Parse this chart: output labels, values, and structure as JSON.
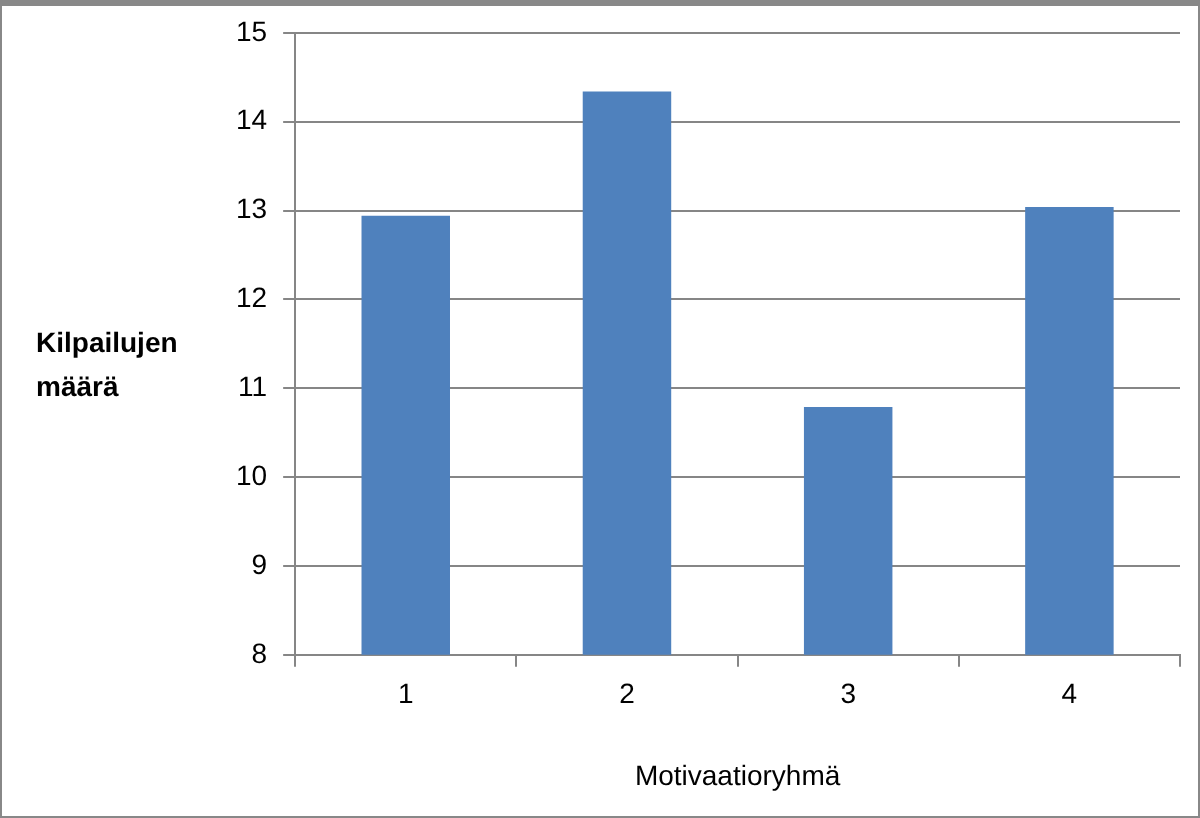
{
  "chart_data": {
    "type": "bar",
    "xlabel": "Motivaatioryhmä",
    "ylabel": "Kilpailujen määrä",
    "categories": [
      "1",
      "2",
      "3",
      "4"
    ],
    "values": [
      12.94,
      14.34,
      10.79,
      13.04
    ],
    "color": "#4f81bd",
    "ylim": [
      8,
      15
    ],
    "yticks": [
      8,
      9,
      10,
      11,
      12,
      13,
      14,
      15
    ],
    "grid": "y",
    "legend": false
  }
}
